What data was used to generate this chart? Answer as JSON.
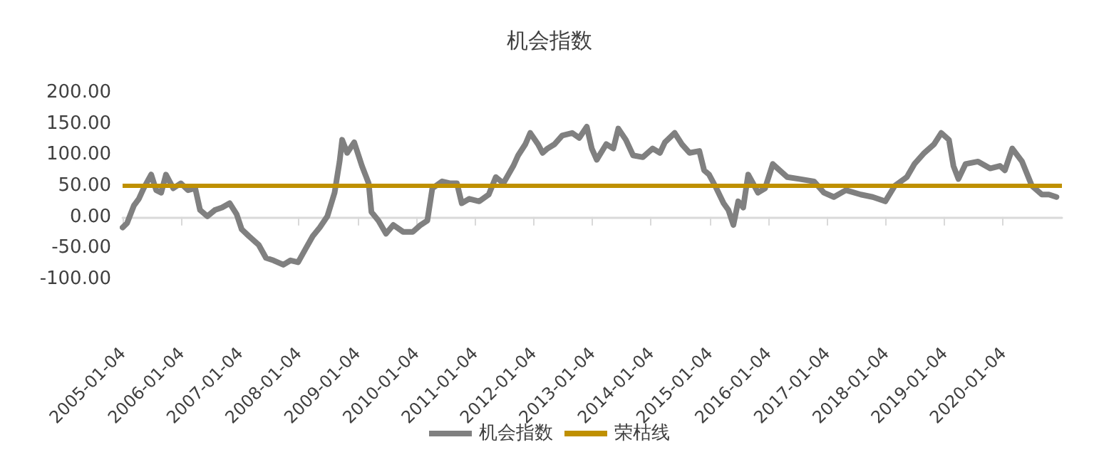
{
  "chart_data": {
    "type": "line",
    "title": "机会指数",
    "x": [
      "2005-01-04",
      "2005-02-01",
      "2005-03-15",
      "2005-04-15",
      "2005-05-15",
      "2005-07-01",
      "2005-08-01",
      "2005-09-01",
      "2005-10-01",
      "2005-11-15",
      "2006-01-01",
      "2006-02-15",
      "2006-04-01",
      "2006-05-01",
      "2006-06-15",
      "2006-08-01",
      "2006-09-15",
      "2006-11-01",
      "2006-12-15",
      "2007-01-15",
      "2007-03-01",
      "2007-05-01",
      "2007-06-15",
      "2007-08-01",
      "2007-10-01",
      "2007-11-15",
      "2008-01-01",
      "2008-02-15",
      "2008-04-01",
      "2008-05-15",
      "2008-07-01",
      "2008-08-15",
      "2008-09-15",
      "2008-10-01",
      "2008-11-01",
      "2008-12-15",
      "2009-02-01",
      "2009-03-15",
      "2009-04-01",
      "2009-05-15",
      "2009-07-01",
      "2009-08-15",
      "2009-10-15",
      "2009-12-15",
      "2010-02-01",
      "2010-03-15",
      "2010-04-15",
      "2010-06-15",
      "2010-08-01",
      "2010-09-15",
      "2010-10-15",
      "2010-12-01",
      "2011-02-01",
      "2011-04-01",
      "2011-05-15",
      "2011-07-01",
      "2011-09-01",
      "2011-10-01",
      "2011-11-15",
      "2011-12-15",
      "2012-02-01",
      "2012-03-01",
      "2012-04-01",
      "2012-05-15",
      "2012-07-01",
      "2012-09-01",
      "2012-10-15",
      "2012-12-01",
      "2013-01-01",
      "2013-02-01",
      "2013-04-01",
      "2013-05-15",
      "2013-06-15",
      "2013-08-01",
      "2013-09-15",
      "2013-11-15",
      "2014-01-15",
      "2014-03-01",
      "2014-04-01",
      "2014-06-01",
      "2014-07-15",
      "2014-09-01",
      "2014-11-01",
      "2014-12-01",
      "2015-01-01",
      "2015-02-15",
      "2015-04-01",
      "2015-05-01",
      "2015-06-01",
      "2015-07-01",
      "2015-08-01",
      "2015-09-01",
      "2015-10-01",
      "2015-11-01",
      "2015-12-15",
      "2016-02-01",
      "2016-03-15",
      "2016-05-01",
      "2016-07-15",
      "2016-10-15",
      "2016-12-15",
      "2017-02-15",
      "2017-05-01",
      "2017-08-01",
      "2017-10-15",
      "2018-01-01",
      "2018-03-01",
      "2018-05-15",
      "2018-07-01",
      "2018-09-01",
      "2018-11-01",
      "2018-12-15",
      "2019-02-01",
      "2019-03-01",
      "2019-04-01",
      "2019-05-15",
      "2019-08-01",
      "2019-10-15",
      "2019-12-15",
      "2020-01-15",
      "2020-03-01",
      "2020-05-01",
      "2020-07-01",
      "2020-09-01",
      "2020-10-15",
      "2020-12-01"
    ],
    "series": [
      {
        "name": "机会指数",
        "color": "#808080",
        "values": [
          -17,
          -10,
          18,
          29,
          46,
          68,
          43,
          39,
          68,
          46,
          54,
          43,
          46,
          11,
          1,
          11,
          15,
          22,
          4,
          -20,
          -31,
          -45,
          -66,
          -70,
          -77,
          -70,
          -73,
          -52,
          -31,
          -17,
          1,
          39,
          89,
          124,
          103,
          120,
          82,
          54,
          8,
          -6,
          -27,
          -13,
          -24,
          -24,
          -13,
          -6,
          46,
          57,
          54,
          54,
          22,
          29,
          25,
          36,
          64,
          54,
          82,
          99,
          117,
          135,
          117,
          103,
          110,
          117,
          131,
          135,
          127,
          145,
          110,
          92,
          117,
          110,
          142,
          124,
          99,
          96,
          110,
          103,
          120,
          135,
          117,
          103,
          106,
          75,
          68,
          46,
          22,
          11,
          -13,
          25,
          15,
          68,
          54,
          39,
          46,
          85,
          75,
          64,
          61,
          57,
          39,
          32,
          43,
          36,
          32,
          25,
          50,
          64,
          85,
          103,
          117,
          135,
          124,
          82,
          61,
          85,
          89,
          78,
          82,
          75,
          110,
          89,
          50,
          36,
          36,
          32
        ]
      }
    ],
    "ref_lines": [
      {
        "axis": "y",
        "value": 50,
        "label": "荣枯线",
        "color": "#bf9000",
        "line_style": "solid"
      }
    ],
    "xlim": [
      "2005-01-04",
      "2021-01-04"
    ],
    "xticks": [
      "2005-01-04",
      "2006-01-04",
      "2007-01-04",
      "2008-01-04",
      "2009-01-04",
      "2010-01-04",
      "2011-01-04",
      "2012-01-04",
      "2013-01-04",
      "2014-01-04",
      "2015-01-04",
      "2016-01-04",
      "2017-01-04",
      "2018-01-04",
      "2019-01-04",
      "2020-01-04"
    ],
    "ylim": [
      -100,
      200
    ],
    "yticks": [
      {
        "value": -100,
        "label": "-100.00"
      },
      {
        "value": -50,
        "label": "-50.00"
      },
      {
        "value": 0,
        "label": "0.00"
      },
      {
        "value": 50,
        "label": "50.00"
      },
      {
        "value": 100,
        "label": "100.00"
      },
      {
        "value": 150,
        "label": "150.00"
      },
      {
        "value": 200,
        "label": "200.00"
      }
    ],
    "grid": false,
    "legend": "bottom",
    "marker": "none",
    "line_style": "solid"
  }
}
